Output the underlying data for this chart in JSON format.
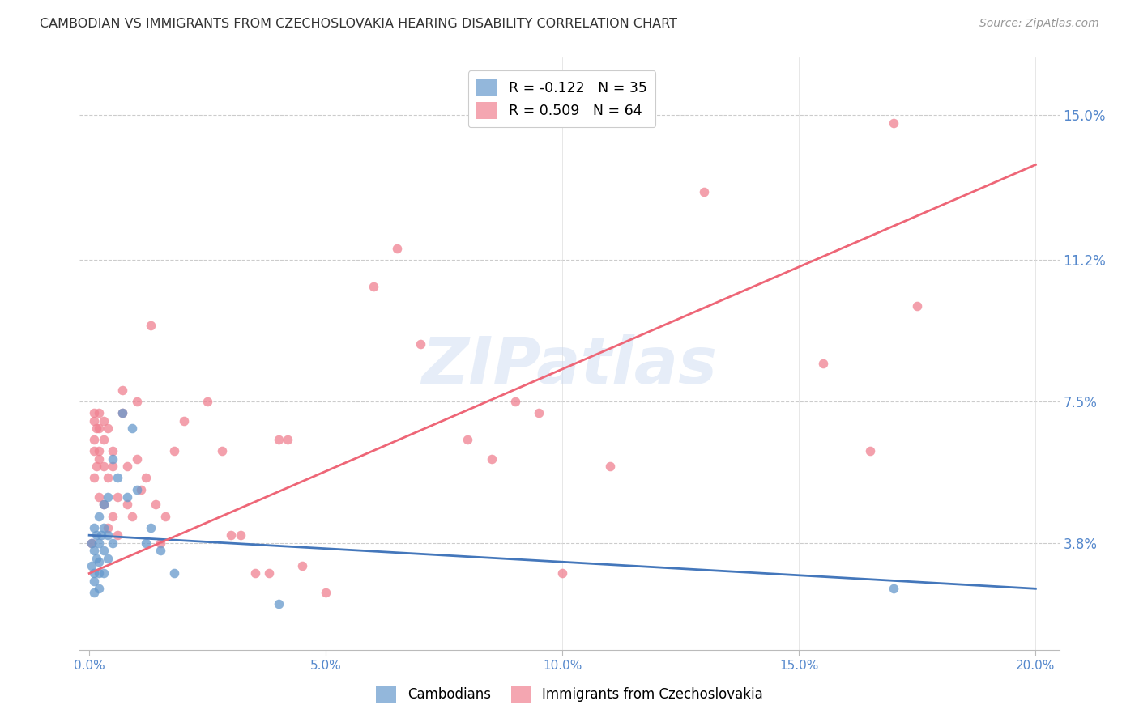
{
  "title": "CAMBODIAN VS IMMIGRANTS FROM CZECHOSLOVAKIA HEARING DISABILITY CORRELATION CHART",
  "source": "Source: ZipAtlas.com",
  "xlabel_ticks": [
    "0.0%",
    "5.0%",
    "10.0%",
    "15.0%",
    "20.0%"
  ],
  "xlabel_tick_vals": [
    0.0,
    0.05,
    0.1,
    0.15,
    0.2
  ],
  "ylabel_ticks": [
    "3.8%",
    "7.5%",
    "11.2%",
    "15.0%"
  ],
  "ylabel_tick_vals": [
    0.038,
    0.075,
    0.112,
    0.15
  ],
  "xlim": [
    -0.002,
    0.205
  ],
  "ylim": [
    0.01,
    0.165
  ],
  "watermark": "ZIPatlas",
  "blue_color": "#6699cc",
  "pink_color": "#f08090",
  "blue_line_color": "#4477bb",
  "pink_line_color": "#ee6677",
  "blue_line_x": [
    0.0,
    0.2
  ],
  "blue_line_y": [
    0.04,
    0.026
  ],
  "pink_line_x": [
    0.0,
    0.2
  ],
  "pink_line_y": [
    0.03,
    0.137
  ],
  "legend_label_blue": "R = -0.122   N = 35",
  "legend_label_pink": "R = 0.509   N = 64",
  "cambodians_x": [
    0.0005,
    0.0005,
    0.001,
    0.001,
    0.001,
    0.001,
    0.001,
    0.0015,
    0.0015,
    0.002,
    0.002,
    0.002,
    0.002,
    0.002,
    0.0025,
    0.003,
    0.003,
    0.003,
    0.003,
    0.004,
    0.004,
    0.004,
    0.005,
    0.005,
    0.006,
    0.007,
    0.008,
    0.009,
    0.01,
    0.012,
    0.013,
    0.015,
    0.018,
    0.04,
    0.17
  ],
  "cambodians_y": [
    0.038,
    0.032,
    0.042,
    0.036,
    0.03,
    0.028,
    0.025,
    0.04,
    0.034,
    0.045,
    0.038,
    0.033,
    0.03,
    0.026,
    0.04,
    0.048,
    0.042,
    0.036,
    0.03,
    0.05,
    0.04,
    0.034,
    0.06,
    0.038,
    0.055,
    0.072,
    0.05,
    0.068,
    0.052,
    0.038,
    0.042,
    0.036,
    0.03,
    0.022,
    0.026
  ],
  "czech_x": [
    0.0005,
    0.001,
    0.001,
    0.001,
    0.001,
    0.001,
    0.0015,
    0.0015,
    0.002,
    0.002,
    0.002,
    0.002,
    0.002,
    0.003,
    0.003,
    0.003,
    0.003,
    0.004,
    0.004,
    0.004,
    0.005,
    0.005,
    0.005,
    0.006,
    0.006,
    0.007,
    0.007,
    0.008,
    0.008,
    0.009,
    0.01,
    0.01,
    0.011,
    0.012,
    0.013,
    0.014,
    0.015,
    0.016,
    0.018,
    0.02,
    0.025,
    0.028,
    0.03,
    0.032,
    0.035,
    0.038,
    0.04,
    0.042,
    0.045,
    0.05,
    0.06,
    0.065,
    0.07,
    0.08,
    0.085,
    0.09,
    0.095,
    0.1,
    0.11,
    0.13,
    0.155,
    0.165,
    0.17,
    0.175
  ],
  "czech_y": [
    0.038,
    0.055,
    0.065,
    0.07,
    0.072,
    0.062,
    0.058,
    0.068,
    0.05,
    0.06,
    0.068,
    0.072,
    0.062,
    0.048,
    0.058,
    0.065,
    0.07,
    0.042,
    0.055,
    0.068,
    0.045,
    0.058,
    0.062,
    0.04,
    0.05,
    0.072,
    0.078,
    0.048,
    0.058,
    0.045,
    0.06,
    0.075,
    0.052,
    0.055,
    0.095,
    0.048,
    0.038,
    0.045,
    0.062,
    0.07,
    0.075,
    0.062,
    0.04,
    0.04,
    0.03,
    0.03,
    0.065,
    0.065,
    0.032,
    0.025,
    0.105,
    0.115,
    0.09,
    0.065,
    0.06,
    0.075,
    0.072,
    0.03,
    0.058,
    0.13,
    0.085,
    0.062,
    0.148,
    0.1
  ]
}
